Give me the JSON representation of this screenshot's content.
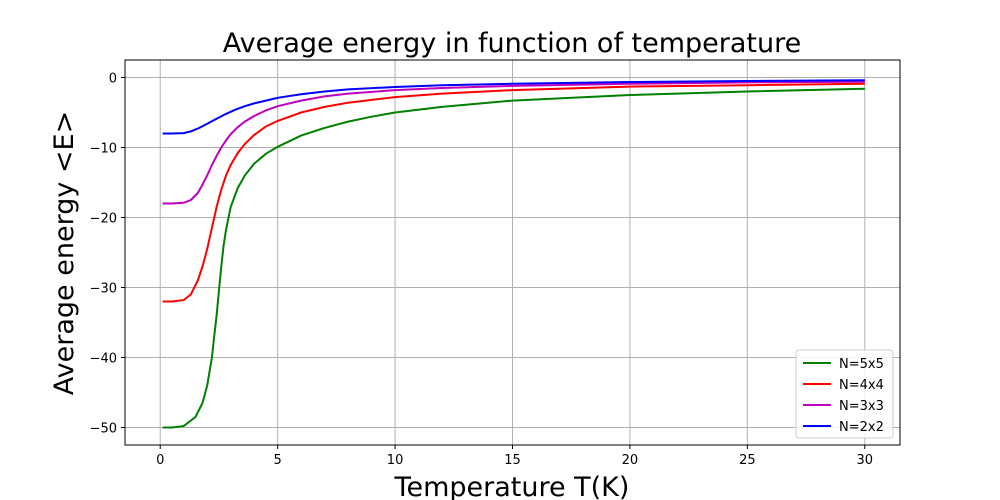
{
  "chart_data": {
    "type": "line",
    "title": "Average energy in function of temperature",
    "xlabel": "Temperature T(K)",
    "ylabel": "Average energy <E>",
    "xlim": [
      -1.5,
      31.5
    ],
    "ylim": [
      -52.5,
      2.5
    ],
    "xticks": [
      0,
      5,
      10,
      15,
      20,
      25,
      30
    ],
    "yticks": [
      0,
      -10,
      -20,
      -30,
      -40,
      -50
    ],
    "xtick_labels": [
      "0",
      "5",
      "10",
      "15",
      "20",
      "25",
      "30"
    ],
    "ytick_labels": [
      "0",
      "−10",
      "−20",
      "−30",
      "−40",
      "−50"
    ],
    "grid": true,
    "legend_position": "lower-right",
    "series": [
      {
        "name": "N=5x5",
        "color": "#008000",
        "x": [
          0.1,
          0.5,
          1.0,
          1.5,
          1.8,
          2.0,
          2.2,
          2.3,
          2.4,
          2.5,
          2.6,
          2.7,
          2.8,
          3.0,
          3.3,
          3.6,
          4.0,
          4.5,
          5.0,
          6.0,
          7.0,
          8.0,
          9.0,
          10.0,
          12.0,
          15.0,
          20.0,
          25.0,
          30.0
        ],
        "y": [
          -50.0,
          -50.0,
          -49.8,
          -48.5,
          -46.5,
          -44.0,
          -40.0,
          -37.0,
          -34.0,
          -30.5,
          -27.0,
          -24.0,
          -21.8,
          -18.5,
          -15.8,
          -14.0,
          -12.3,
          -10.9,
          -9.9,
          -8.3,
          -7.2,
          -6.3,
          -5.6,
          -5.0,
          -4.2,
          -3.3,
          -2.5,
          -2.0,
          -1.6
        ]
      },
      {
        "name": "N=4x4",
        "color": "#ff0000",
        "x": [
          0.1,
          0.5,
          1.0,
          1.3,
          1.6,
          1.8,
          2.0,
          2.2,
          2.4,
          2.6,
          2.8,
          3.0,
          3.3,
          3.6,
          4.0,
          4.5,
          5.0,
          6.0,
          7.0,
          8.0,
          10.0,
          12.0,
          15.0,
          20.0,
          25.0,
          30.0
        ],
        "y": [
          -32.0,
          -32.0,
          -31.8,
          -31.0,
          -29.0,
          -27.0,
          -24.5,
          -21.5,
          -18.5,
          -16.0,
          -14.0,
          -12.5,
          -10.8,
          -9.5,
          -8.2,
          -7.0,
          -6.2,
          -5.0,
          -4.2,
          -3.6,
          -2.8,
          -2.3,
          -1.8,
          -1.3,
          -1.1,
          -0.9
        ]
      },
      {
        "name": "N=3x3",
        "color": "#bf00bf",
        "x": [
          0.1,
          0.5,
          1.0,
          1.3,
          1.6,
          1.8,
          2.0,
          2.2,
          2.4,
          2.6,
          2.8,
          3.0,
          3.3,
          3.6,
          4.0,
          4.5,
          5.0,
          6.0,
          7.0,
          8.0,
          10.0,
          12.0,
          15.0,
          20.0,
          25.0,
          30.0
        ],
        "y": [
          -18.0,
          -18.0,
          -17.9,
          -17.5,
          -16.5,
          -15.3,
          -14.0,
          -12.5,
          -11.2,
          -10.0,
          -9.0,
          -8.1,
          -7.1,
          -6.3,
          -5.5,
          -4.7,
          -4.1,
          -3.3,
          -2.7,
          -2.3,
          -1.8,
          -1.5,
          -1.2,
          -0.9,
          -0.7,
          -0.6
        ]
      },
      {
        "name": "N=2x2",
        "color": "#0000ff",
        "x": [
          0.1,
          0.5,
          1.0,
          1.3,
          1.6,
          2.0,
          2.4,
          2.8,
          3.2,
          3.6,
          4.0,
          4.5,
          5.0,
          6.0,
          7.0,
          8.0,
          10.0,
          12.0,
          15.0,
          20.0,
          25.0,
          30.0
        ],
        "y": [
          -8.0,
          -8.0,
          -7.95,
          -7.7,
          -7.3,
          -6.6,
          -5.9,
          -5.2,
          -4.6,
          -4.1,
          -3.7,
          -3.3,
          -2.9,
          -2.4,
          -2.0,
          -1.7,
          -1.35,
          -1.1,
          -0.9,
          -0.65,
          -0.5,
          -0.4
        ]
      }
    ]
  }
}
